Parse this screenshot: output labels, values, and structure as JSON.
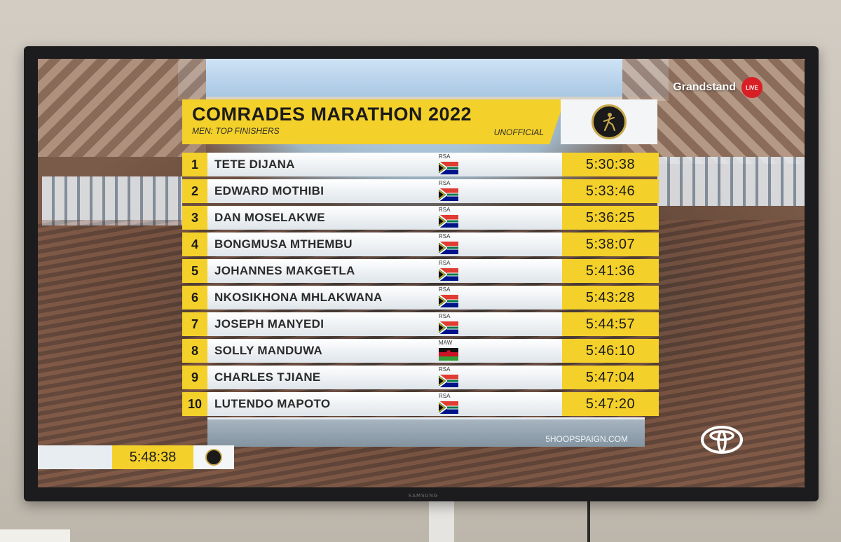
{
  "broadcast": {
    "channel": "Grandstand",
    "live_label": "LIVE",
    "sponsor_footer": "5HOOPSPAIGN.COM",
    "tv_brand": "SAMSUNG"
  },
  "board": {
    "title": "COMRADES MARATHON 2022",
    "subtitle": "MEN: TOP FINISHERS",
    "status": "UNOFFICIAL",
    "rows": [
      {
        "pos": "1",
        "name": "TETE DIJANA",
        "nat": "RSA",
        "time": "5:30:38"
      },
      {
        "pos": "2",
        "name": "EDWARD MOTHIBI",
        "nat": "RSA",
        "time": "5:33:46"
      },
      {
        "pos": "3",
        "name": "DAN MOSELAKWE",
        "nat": "RSA",
        "time": "5:36:25"
      },
      {
        "pos": "4",
        "name": "BONGMUSA MTHEMBU",
        "nat": "RSA",
        "time": "5:38:07"
      },
      {
        "pos": "5",
        "name": "JOHANNES MAKGETLA",
        "nat": "RSA",
        "time": "5:41:36"
      },
      {
        "pos": "6",
        "name": "NKOSIKHONA MHLAKWANA",
        "nat": "RSA",
        "time": "5:43:28"
      },
      {
        "pos": "7",
        "name": "JOSEPH MANYEDI",
        "nat": "RSA",
        "time": "5:44:57"
      },
      {
        "pos": "8",
        "name": "SOLLY MANDUWA",
        "nat": "MAW",
        "time": "5:46:10"
      },
      {
        "pos": "9",
        "name": "CHARLES TJIANE",
        "nat": "RSA",
        "time": "5:47:04"
      },
      {
        "pos": "10",
        "name": "LUTENDO MAPOTO",
        "nat": "RSA",
        "time": "5:47:20"
      }
    ]
  },
  "race_clock": {
    "time": "5:48:38"
  },
  "colors": {
    "accent_yellow": "#f4d02a",
    "live_red": "#d91f26"
  }
}
